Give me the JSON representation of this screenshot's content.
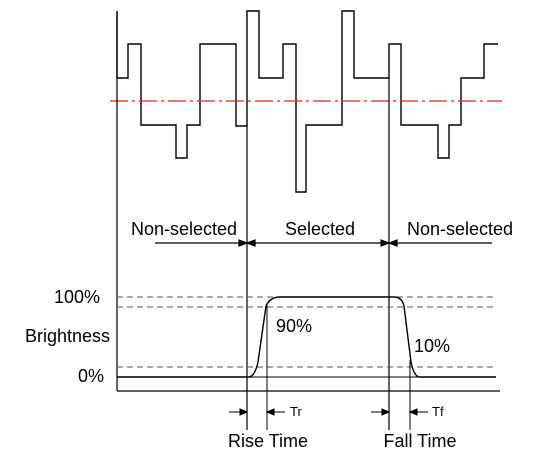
{
  "regions": {
    "left": "Non-selected",
    "middle": "Selected",
    "right": "Non-selected"
  },
  "levels": {
    "top": "100%",
    "bottom": "0%",
    "high_threshold": "90%",
    "low_threshold": "10%",
    "axis_label": "Brightness"
  },
  "timing": {
    "rise_short": "Tr",
    "fall_short": "Tf",
    "rise_label": "Rise Time",
    "fall_label": "Fall Time"
  },
  "colors": {
    "threshold_line": "#e02020",
    "ink": "#000000",
    "dashed": "#555555"
  }
}
